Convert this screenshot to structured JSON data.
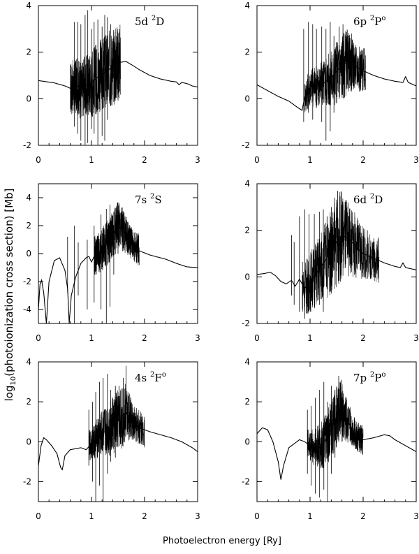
{
  "chart_data": {
    "type": "line",
    "xlabel": "Photoelectron energy [Ry]",
    "ylabel": {
      "prefix": "log",
      "subscript": "10",
      "rest": "(photoionization cross section) [Mb]"
    },
    "panels": [
      {
        "state": "5d",
        "term": "D",
        "multiplicity": "2",
        "parity": "",
        "xlim": [
          0,
          3
        ],
        "ylim": [
          -2,
          4
        ],
        "xticks": [
          0,
          1,
          2,
          3
        ],
        "yticks": [
          -2,
          0,
          2,
          4
        ],
        "background": [
          [
            0,
            0.78
          ],
          [
            0.3,
            0.68
          ],
          [
            0.5,
            0.55
          ],
          [
            0.6,
            0.45
          ],
          [
            0.68,
            0.5
          ],
          [
            0.75,
            0.55
          ],
          [
            0.8,
            0.3
          ],
          [
            0.85,
            0.55
          ],
          [
            0.95,
            0.6
          ],
          [
            1.1,
            0.9
          ],
          [
            1.3,
            1.2
          ],
          [
            1.5,
            1.55
          ],
          [
            1.65,
            1.6
          ],
          [
            1.8,
            1.4
          ],
          [
            1.9,
            1.25
          ],
          [
            2.1,
            1.0
          ],
          [
            2.3,
            0.85
          ],
          [
            2.5,
            0.75
          ],
          [
            2.6,
            0.72
          ],
          [
            2.65,
            0.6
          ],
          [
            2.7,
            0.7
          ],
          [
            2.8,
            0.65
          ],
          [
            2.9,
            0.55
          ],
          [
            3.0,
            0.5
          ]
        ],
        "resonances": [
          [
            0.65,
            1.2
          ],
          [
            0.9,
            1.3
          ],
          [
            1.0,
            1.5
          ],
          [
            1.15,
            1.6
          ],
          [
            1.35,
            1.7
          ]
        ],
        "spikes": [
          [
            0.68,
            3.3,
            -1.2
          ],
          [
            0.74,
            3.3,
            -1.5
          ],
          [
            0.8,
            3.2,
            -1.8
          ],
          [
            0.88,
            3.6,
            -2.0
          ],
          [
            0.93,
            3.8,
            -1.9
          ],
          [
            1.0,
            3.0,
            -1.3
          ],
          [
            1.05,
            3.3,
            -1.5
          ],
          [
            1.12,
            3.4,
            -2.0
          ],
          [
            1.2,
            3.1,
            -1.6
          ],
          [
            1.25,
            3.6,
            -1.8
          ],
          [
            1.3,
            3.5,
            -0.9
          ],
          [
            1.36,
            3.2,
            -0.3
          ],
          [
            1.42,
            2.6,
            0.6
          ],
          [
            1.48,
            2.4,
            0.8
          ]
        ]
      },
      {
        "state": "6p",
        "term": "P",
        "multiplicity": "2",
        "parity": "o",
        "xlim": [
          0,
          3
        ],
        "ylim": [
          -2,
          4
        ],
        "xticks": [
          0,
          1,
          2,
          3
        ],
        "yticks": [
          -2,
          0,
          2,
          4
        ],
        "background": [
          [
            0,
            0.6
          ],
          [
            0.2,
            0.35
          ],
          [
            0.4,
            0.1
          ],
          [
            0.6,
            -0.1
          ],
          [
            0.75,
            -0.35
          ],
          [
            0.85,
            -0.5
          ],
          [
            0.9,
            0.1
          ],
          [
            1.0,
            0.5
          ],
          [
            1.2,
            0.6
          ],
          [
            1.4,
            0.9
          ],
          [
            1.55,
            1.3
          ],
          [
            1.7,
            1.6
          ],
          [
            1.85,
            1.4
          ],
          [
            2.0,
            1.2
          ],
          [
            2.2,
            1.0
          ],
          [
            2.4,
            0.85
          ],
          [
            2.6,
            0.75
          ],
          [
            2.75,
            0.7
          ],
          [
            2.8,
            0.95
          ],
          [
            2.85,
            0.7
          ],
          [
            3.0,
            0.55
          ]
        ],
        "resonances": [
          [
            0.95,
            0.8
          ],
          [
            1.2,
            1.0
          ],
          [
            1.4,
            1.3
          ],
          [
            1.65,
            1.5
          ],
          [
            1.85,
            1.0
          ]
        ],
        "spikes": [
          [
            0.88,
            3.0,
            -1.0
          ],
          [
            0.97,
            3.3,
            -0.6
          ],
          [
            1.05,
            3.2,
            -0.9
          ],
          [
            1.12,
            3.0,
            -0.4
          ],
          [
            1.22,
            3.1,
            -1.0
          ],
          [
            1.3,
            3.0,
            -1.8
          ],
          [
            1.38,
            3.3,
            -1.4
          ],
          [
            1.45,
            2.7,
            -0.6
          ],
          [
            1.55,
            3.1,
            0.0
          ],
          [
            1.62,
            3.2,
            0.3
          ],
          [
            1.7,
            2.6,
            0.6
          ],
          [
            1.78,
            2.8,
            0.4
          ]
        ]
      },
      {
        "state": "7s",
        "term": "S",
        "multiplicity": "2",
        "parity": "",
        "xlim": [
          0,
          3
        ],
        "ylim": [
          -5,
          5
        ],
        "xticks": [
          0,
          1,
          2,
          3
        ],
        "yticks": [
          -4,
          -2,
          0,
          2,
          4
        ],
        "background": [
          [
            0,
            -4.0
          ],
          [
            0.03,
            -2.2
          ],
          [
            0.06,
            -1.9
          ],
          [
            0.1,
            -2.8
          ],
          [
            0.15,
            -5.0
          ],
          [
            0.2,
            -2.0
          ],
          [
            0.3,
            -0.5
          ],
          [
            0.4,
            -0.3
          ],
          [
            0.5,
            -1.2
          ],
          [
            0.55,
            -2.5
          ],
          [
            0.58,
            -5.0
          ],
          [
            0.62,
            -3.0
          ],
          [
            0.7,
            -1.7
          ],
          [
            0.8,
            -0.7
          ],
          [
            0.9,
            -0.3
          ],
          [
            0.95,
            -0.2
          ],
          [
            1.0,
            -0.6
          ],
          [
            1.05,
            -0.2
          ],
          [
            1.2,
            0.3
          ],
          [
            1.35,
            1.0
          ],
          [
            1.5,
            2.0
          ],
          [
            1.6,
            1.6
          ],
          [
            1.75,
            0.8
          ],
          [
            1.9,
            0.2
          ],
          [
            2.1,
            -0.1
          ],
          [
            2.4,
            -0.4
          ],
          [
            2.6,
            -0.7
          ],
          [
            2.8,
            -0.95
          ],
          [
            3.0,
            -1.0
          ]
        ],
        "resonances": [
          [
            1.1,
            1.5
          ],
          [
            1.3,
            1.6
          ],
          [
            1.5,
            1.8
          ],
          [
            1.7,
            1.2
          ]
        ],
        "spikes": [
          [
            0.55,
            1.2,
            -2.8
          ],
          [
            0.68,
            2.0,
            -5.0
          ],
          [
            0.75,
            0.8,
            -3.0
          ],
          [
            0.92,
            1.0,
            -4.0
          ],
          [
            1.05,
            2.0,
            -3.5
          ],
          [
            1.18,
            2.8,
            -4.0
          ],
          [
            1.28,
            3.2,
            -5.0
          ],
          [
            1.35,
            3.5,
            -3.8
          ],
          [
            1.42,
            3.0,
            -1.5
          ],
          [
            1.5,
            3.6,
            0.0
          ],
          [
            1.58,
            3.3,
            0.8
          ],
          [
            1.65,
            2.6,
            0.9
          ]
        ]
      },
      {
        "state": "6d",
        "term": "D",
        "multiplicity": "2",
        "parity": "",
        "xlim": [
          0,
          3
        ],
        "ylim": [
          -2,
          4
        ],
        "xticks": [
          0,
          1,
          2,
          3
        ],
        "yticks": [
          -2,
          0,
          2,
          4
        ],
        "background": [
          [
            0,
            0.1
          ],
          [
            0.15,
            0.15
          ],
          [
            0.25,
            0.2
          ],
          [
            0.35,
            0.05
          ],
          [
            0.45,
            -0.2
          ],
          [
            0.55,
            -0.3
          ],
          [
            0.65,
            -0.15
          ],
          [
            0.72,
            -0.4
          ],
          [
            0.8,
            -0.1
          ],
          [
            0.9,
            -0.5
          ],
          [
            1.0,
            -0.2
          ],
          [
            1.2,
            0.4
          ],
          [
            1.4,
            1.1
          ],
          [
            1.5,
            1.5
          ],
          [
            1.6,
            1.8
          ],
          [
            1.75,
            1.6
          ],
          [
            1.9,
            1.2
          ],
          [
            2.0,
            1.0
          ],
          [
            2.2,
            0.8
          ],
          [
            2.4,
            0.6
          ],
          [
            2.6,
            0.45
          ],
          [
            2.7,
            0.4
          ],
          [
            2.75,
            0.6
          ],
          [
            2.8,
            0.4
          ],
          [
            3.0,
            0.3
          ]
        ],
        "resonances": [
          [
            0.9,
            1.2
          ],
          [
            1.15,
            1.5
          ],
          [
            1.35,
            1.8
          ],
          [
            1.55,
            2.0
          ],
          [
            1.75,
            1.6
          ],
          [
            1.95,
            1.2
          ],
          [
            2.1,
            1.0
          ]
        ],
        "spikes": [
          [
            0.65,
            1.8,
            -0.8
          ],
          [
            0.7,
            1.5,
            -1.2
          ],
          [
            0.8,
            2.6,
            -1.5
          ],
          [
            0.9,
            2.9,
            -1.8
          ],
          [
            0.98,
            2.7,
            -1.5
          ],
          [
            1.08,
            2.7,
            -1.0
          ],
          [
            1.18,
            2.8,
            -1.2
          ],
          [
            1.25,
            2.9,
            -1.5
          ],
          [
            1.32,
            2.6,
            -0.5
          ],
          [
            1.4,
            3.0,
            -0.2
          ],
          [
            1.46,
            3.4,
            0.3
          ],
          [
            1.52,
            3.7,
            0.6
          ],
          [
            1.6,
            3.0,
            0.9
          ],
          [
            1.7,
            2.8,
            0.8
          ],
          [
            1.82,
            2.2,
            0.6
          ],
          [
            1.95,
            2.2,
            0.4
          ],
          [
            2.08,
            2.0,
            0.4
          ]
        ]
      },
      {
        "state": "4s",
        "term": "F",
        "multiplicity": "2",
        "parity": "o",
        "xlim": [
          0,
          3
        ],
        "ylim": [
          -3,
          4
        ],
        "xticks": [
          0,
          1,
          2,
          3
        ],
        "yticks": [
          -2,
          0,
          2,
          4
        ],
        "background": [
          [
            0,
            -1.2
          ],
          [
            0.05,
            -0.2
          ],
          [
            0.1,
            0.2
          ],
          [
            0.15,
            0.1
          ],
          [
            0.25,
            -0.2
          ],
          [
            0.35,
            -0.6
          ],
          [
            0.42,
            -1.3
          ],
          [
            0.45,
            -1.4
          ],
          [
            0.5,
            -0.7
          ],
          [
            0.6,
            -0.4
          ],
          [
            0.8,
            -0.3
          ],
          [
            0.9,
            -0.4
          ],
          [
            1.0,
            -0.1
          ],
          [
            1.2,
            0.4
          ],
          [
            1.4,
            0.8
          ],
          [
            1.55,
            1.2
          ],
          [
            1.65,
            1.5
          ],
          [
            1.75,
            1.1
          ],
          [
            1.9,
            0.7
          ],
          [
            2.1,
            0.5
          ],
          [
            2.3,
            0.35
          ],
          [
            2.5,
            0.2
          ],
          [
            2.7,
            0.0
          ],
          [
            2.9,
            -0.3
          ],
          [
            3.0,
            -0.5
          ]
        ],
        "resonances": [
          [
            1.0,
            0.8
          ],
          [
            1.2,
            1.2
          ],
          [
            1.4,
            1.5
          ],
          [
            1.6,
            1.6
          ],
          [
            1.8,
            0.9
          ]
        ],
        "spikes": [
          [
            0.95,
            1.6,
            -1.2
          ],
          [
            1.02,
            2.0,
            -2.0
          ],
          [
            1.08,
            2.5,
            -3.0
          ],
          [
            1.15,
            3.0,
            -2.2
          ],
          [
            1.22,
            3.2,
            -3.0
          ],
          [
            1.3,
            3.4,
            -1.6
          ],
          [
            1.36,
            2.6,
            -1.0
          ],
          [
            1.45,
            2.8,
            -0.8
          ],
          [
            1.52,
            2.8,
            -0.2
          ],
          [
            1.6,
            3.2,
            0.4
          ],
          [
            1.65,
            3.8,
            0.6
          ],
          [
            1.72,
            2.4,
            0.5
          ]
        ]
      },
      {
        "state": "7p",
        "term": "P",
        "multiplicity": "2",
        "parity": "o",
        "xlim": [
          0,
          3
        ],
        "ylim": [
          -3,
          4
        ],
        "xticks": [
          0,
          1,
          2,
          3
        ],
        "yticks": [
          -2,
          0,
          2,
          4
        ],
        "background": [
          [
            0,
            0.4
          ],
          [
            0.1,
            0.7
          ],
          [
            0.2,
            0.6
          ],
          [
            0.3,
            0.0
          ],
          [
            0.4,
            -1.0
          ],
          [
            0.45,
            -1.9
          ],
          [
            0.5,
            -1.2
          ],
          [
            0.6,
            -0.3
          ],
          [
            0.8,
            0.1
          ],
          [
            0.9,
            0.0
          ],
          [
            1.0,
            -0.2
          ],
          [
            1.2,
            -0.3
          ],
          [
            1.4,
            0.6
          ],
          [
            1.55,
            1.6
          ],
          [
            1.65,
            1.3
          ],
          [
            1.8,
            0.6
          ],
          [
            1.9,
            0.2
          ],
          [
            2.0,
            0.1
          ],
          [
            2.2,
            0.2
          ],
          [
            2.4,
            0.35
          ],
          [
            2.5,
            0.3
          ],
          [
            2.6,
            0.1
          ],
          [
            2.8,
            -0.2
          ],
          [
            3.0,
            -0.5
          ]
        ],
        "resonances": [
          [
            1.0,
            0.8
          ],
          [
            1.2,
            1.2
          ],
          [
            1.4,
            1.5
          ],
          [
            1.6,
            1.5
          ],
          [
            1.8,
            0.8
          ]
        ],
        "spikes": [
          [
            0.95,
            1.6,
            -1.6
          ],
          [
            1.02,
            1.8,
            -2.2
          ],
          [
            1.1,
            2.2,
            -2.6
          ],
          [
            1.18,
            2.6,
            -2.8
          ],
          [
            1.26,
            3.0,
            -2.4
          ],
          [
            1.33,
            2.0,
            -3.0
          ],
          [
            1.4,
            2.8,
            -1.6
          ],
          [
            1.47,
            2.6,
            -0.8
          ],
          [
            1.54,
            3.3,
            0.0
          ],
          [
            1.6,
            3.1,
            0.5
          ],
          [
            1.68,
            2.2,
            0.2
          ]
        ]
      }
    ]
  }
}
